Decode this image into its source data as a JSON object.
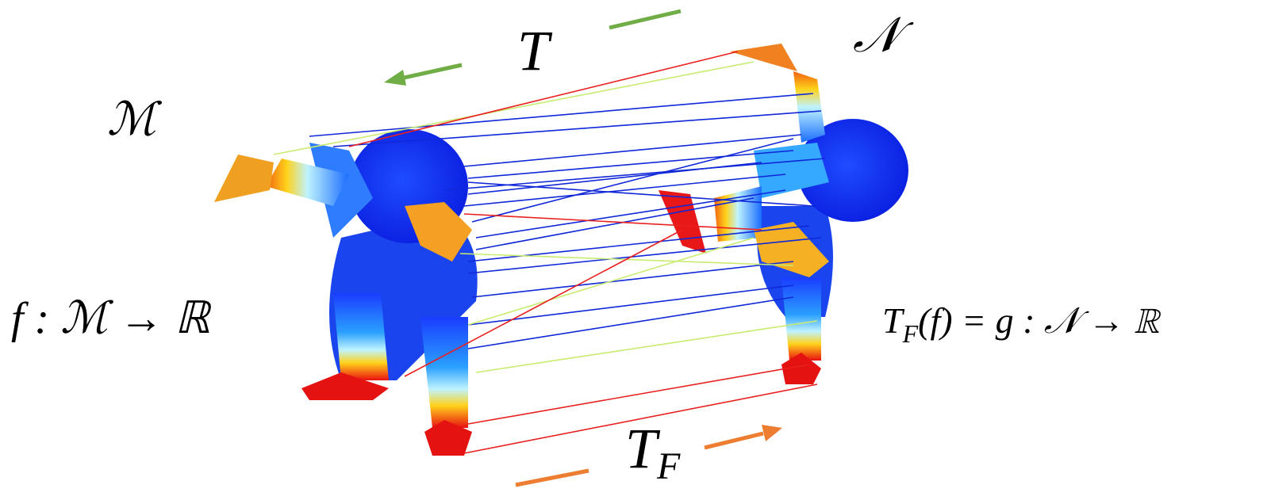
{
  "labels": {
    "T": "T",
    "N": "𝒩",
    "M": "ℳ",
    "f_map": "f : ℳ → ℝ",
    "tf_map": {
      "base": "T",
      "sub": "F",
      "rest": "(f) = g : 𝒩 → ℝ"
    },
    "tf": {
      "base": "T",
      "sub": "F"
    }
  }
}
